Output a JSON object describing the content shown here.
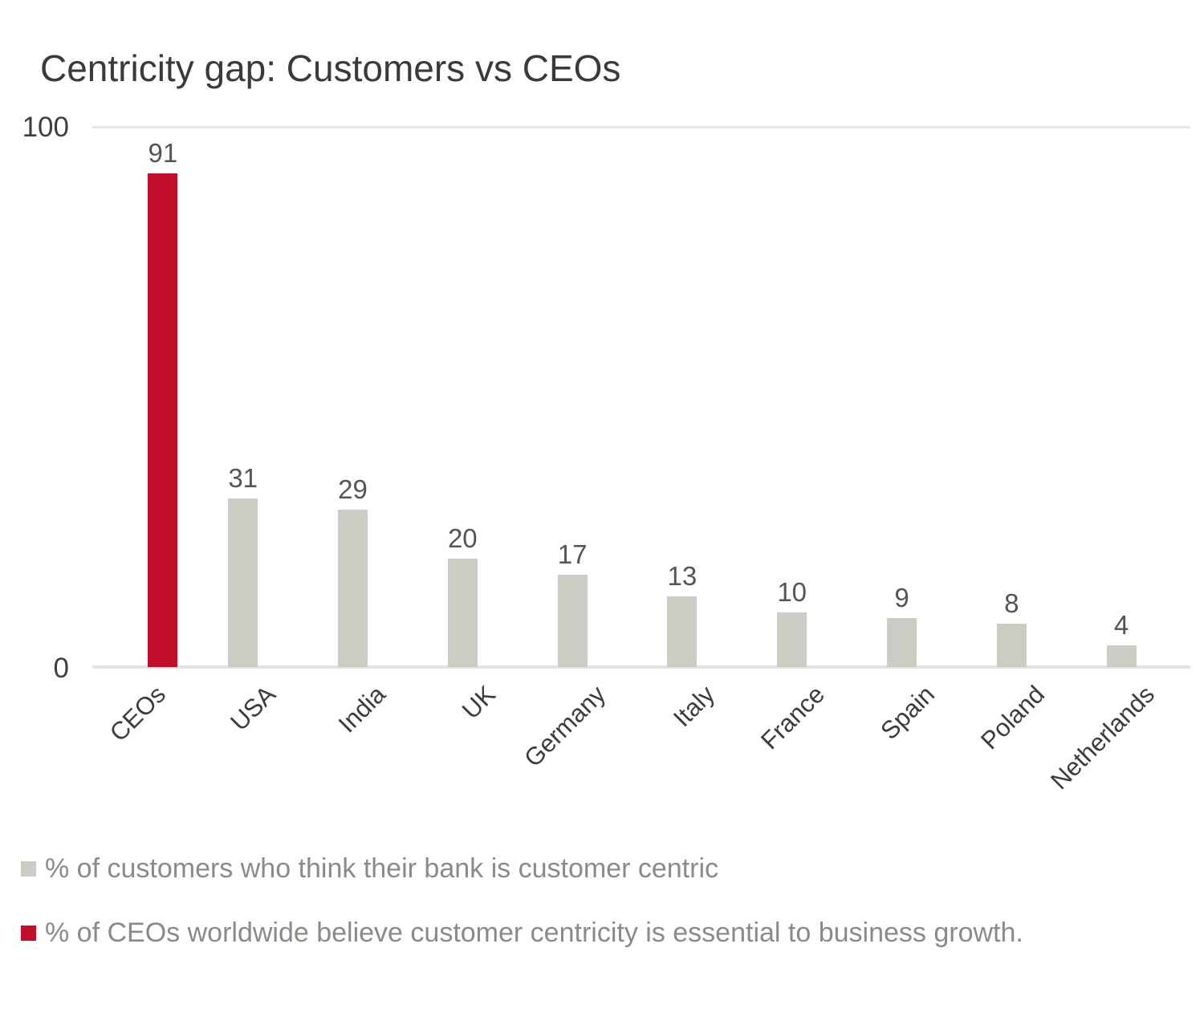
{
  "title": "Centricity gap: Customers vs CEOs",
  "y_axis": {
    "ticks": [
      {
        "label": "100",
        "value": 100
      },
      {
        "label": "0",
        "value": 0
      }
    ]
  },
  "legend": {
    "items": [
      {
        "swatch_color": "#CDCCC4",
        "label": "% of customers who think their bank is customer centric"
      },
      {
        "swatch_color": "#C10E2B",
        "label": "% of CEOs worldwide believe customer centricity is essential to business growth."
      }
    ]
  },
  "colors": {
    "ceo_bar": "#C10E2B",
    "customer_bar": "#CDCCC4",
    "title_text": "#3A3A3A",
    "axis_tick_text": "#3F3F3F",
    "value_label_text": "#56544E",
    "category_label_text": "#3C3C3C",
    "legend_text": "#8B8B86",
    "gridline": "#E6E6E6",
    "axis_line": "#E3E3E3",
    "background": "#FFFFFF"
  },
  "chart_data": {
    "type": "bar",
    "title": "Centricity gap: Customers vs CEOs",
    "categories": [
      "CEOs",
      "USA",
      "India",
      "UK",
      "Germany",
      "Italy",
      "France",
      "Spain",
      "Poland",
      "Netherlands"
    ],
    "values": [
      91,
      31,
      29,
      20,
      17,
      13,
      10,
      9,
      8,
      4
    ],
    "bar_series": [
      "ceos",
      "customers",
      "customers",
      "customers",
      "customers",
      "customers",
      "customers",
      "customers",
      "customers",
      "customers"
    ],
    "series_colors": {
      "ceos": "#C10E2B",
      "customers": "#CDCCC4"
    },
    "value_labels_shown": true,
    "xlabel": "",
    "ylabel": "",
    "ylim": [
      0,
      100
    ],
    "yticks": [
      0,
      100
    ],
    "grid": "single gridline at y=100, baseline at y=0",
    "x_tick_rotation_deg": 45,
    "legend_position": "bottom-left",
    "legend": [
      "% of customers who think their bank is customer centric",
      "% of CEOs worldwide believe customer centricity is essential to business growth."
    ]
  }
}
